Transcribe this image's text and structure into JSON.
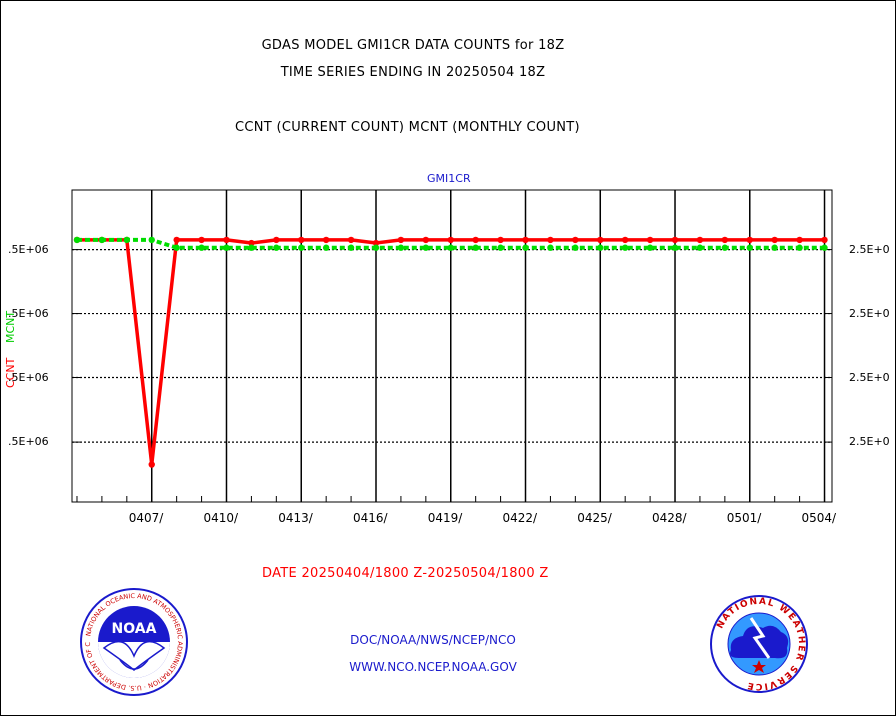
{
  "header": {
    "title_line1": "GDAS MODEL GMI1CR DATA COUNTS for 18Z",
    "title_line2": "TIME SERIES ENDING IN 20250504 18Z",
    "subtitle": "CCNT (CURRENT COUNT) MCNT (MONTHLY COUNT)"
  },
  "footer": {
    "date_range": "DATE 20250404/1800 Z-20250504/1800 Z",
    "credit_line1": "DOC/NOAA/NWS/NCEP/NCO",
    "credit_line2": "WWW.NCO.NCEP.NOAA.GOV"
  },
  "logos": {
    "left": {
      "name": "NOAA",
      "ring_text": "NATIONAL OCEANIC AND ATMOSPHERIC ADMINISTRATION · U.S. DEPARTMENT OF COMMERCE"
    },
    "right": {
      "ring_text": "NATIONAL WEATHER SERVICE"
    }
  },
  "colors": {
    "ccnt": "#ff0000",
    "mcnt": "#00dd00",
    "panel_title": "#1a1acc",
    "credit": "#1a1acc"
  },
  "chart_data": {
    "type": "line",
    "title": "GMI1CR",
    "ylabel_left_ccnt": "CCNT",
    "ylabel_left_mcnt": "MCNT",
    "y_tick_labels_left": [
      ".5E+06",
      ".5E+06",
      ".5E+06",
      ".5E+06"
    ],
    "y_tick_labels_right": [
      "2.5E+0",
      "2.5E+0",
      "2.5E+0",
      "2.5E+0"
    ],
    "x_tick_labels": [
      "0407/",
      "0410/",
      "0413/",
      "0416/",
      "0419/",
      "0422/",
      "0425/",
      "0428/",
      "0501/",
      "0504/"
    ],
    "x_tick_days": [
      3,
      6,
      9,
      12,
      15,
      18,
      21,
      24,
      27,
      30
    ],
    "xlim_days": [
      -0.2,
      30.3
    ],
    "ylim": [
      0,
      1
    ],
    "y_gridlines": [
      0.809,
      0.604,
      0.399,
      0.192
    ],
    "grid": true,
    "series": [
      {
        "name": "CCNT",
        "color": "#ff0000",
        "style": "solid",
        "x_days": [
          0,
          1,
          2,
          3,
          4,
          5,
          6,
          7,
          8,
          9,
          10,
          11,
          12,
          13,
          14,
          15,
          16,
          17,
          18,
          19,
          20,
          21,
          22,
          23,
          24,
          25,
          26,
          27,
          28,
          29,
          30
        ],
        "values": [
          0.84,
          0.84,
          0.84,
          0.12,
          0.84,
          0.84,
          0.84,
          0.83,
          0.84,
          0.84,
          0.84,
          0.84,
          0.83,
          0.84,
          0.84,
          0.84,
          0.84,
          0.84,
          0.84,
          0.84,
          0.84,
          0.84,
          0.84,
          0.84,
          0.84,
          0.84,
          0.84,
          0.84,
          0.84,
          0.84,
          0.84
        ]
      },
      {
        "name": "MCNT",
        "color": "#00dd00",
        "style": "dotted",
        "x_days": [
          0,
          1,
          2,
          3,
          4,
          5,
          6,
          7,
          8,
          9,
          10,
          11,
          12,
          13,
          14,
          15,
          16,
          17,
          18,
          19,
          20,
          21,
          22,
          23,
          24,
          25,
          26,
          27,
          28,
          29,
          30
        ],
        "values": [
          0.84,
          0.84,
          0.84,
          0.84,
          0.815,
          0.815,
          0.815,
          0.815,
          0.815,
          0.815,
          0.815,
          0.815,
          0.815,
          0.815,
          0.815,
          0.815,
          0.815,
          0.815,
          0.815,
          0.815,
          0.815,
          0.815,
          0.815,
          0.815,
          0.815,
          0.815,
          0.815,
          0.815,
          0.815,
          0.815,
          0.815
        ]
      }
    ]
  }
}
